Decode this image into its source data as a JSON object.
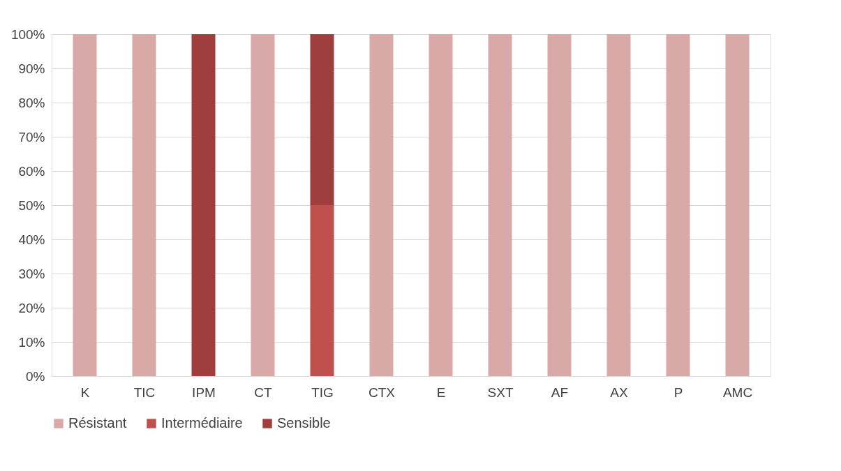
{
  "chart_data": {
    "type": "bar",
    "stacked": true,
    "categories": [
      "K",
      "TIC",
      "IPM",
      "CT",
      "TIG",
      "CTX",
      "E",
      "SXT",
      "AF",
      "AX",
      "P",
      "AMC"
    ],
    "series": [
      {
        "name": "Résistant",
        "color": "#d9a9a8",
        "values": [
          100,
          100,
          0,
          100,
          0,
          100,
          100,
          100,
          100,
          100,
          100,
          100
        ]
      },
      {
        "name": "Intermédiaire",
        "color": "#c0504d",
        "values": [
          0,
          0,
          0,
          0,
          50,
          0,
          0,
          0,
          0,
          0,
          0,
          0
        ]
      },
      {
        "name": "Sensible",
        "color": "#9e3f3d",
        "values": [
          0,
          0,
          100,
          0,
          50,
          0,
          0,
          0,
          0,
          0,
          0,
          0
        ]
      }
    ],
    "ylim": [
      0,
      100
    ],
    "yticks": [
      {
        "value": 0,
        "label": "0%"
      },
      {
        "value": 10,
        "label": "10%"
      },
      {
        "value": 20,
        "label": "20%"
      },
      {
        "value": 30,
        "label": "30%"
      },
      {
        "value": 40,
        "label": "40%"
      },
      {
        "value": 50,
        "label": "50%"
      },
      {
        "value": 60,
        "label": "60%"
      },
      {
        "value": 70,
        "label": "70%"
      },
      {
        "value": 80,
        "label": "80%"
      },
      {
        "value": 90,
        "label": "90%"
      },
      {
        "value": 100,
        "label": "100%"
      }
    ],
    "grid": "y",
    "legend": "bottom"
  }
}
